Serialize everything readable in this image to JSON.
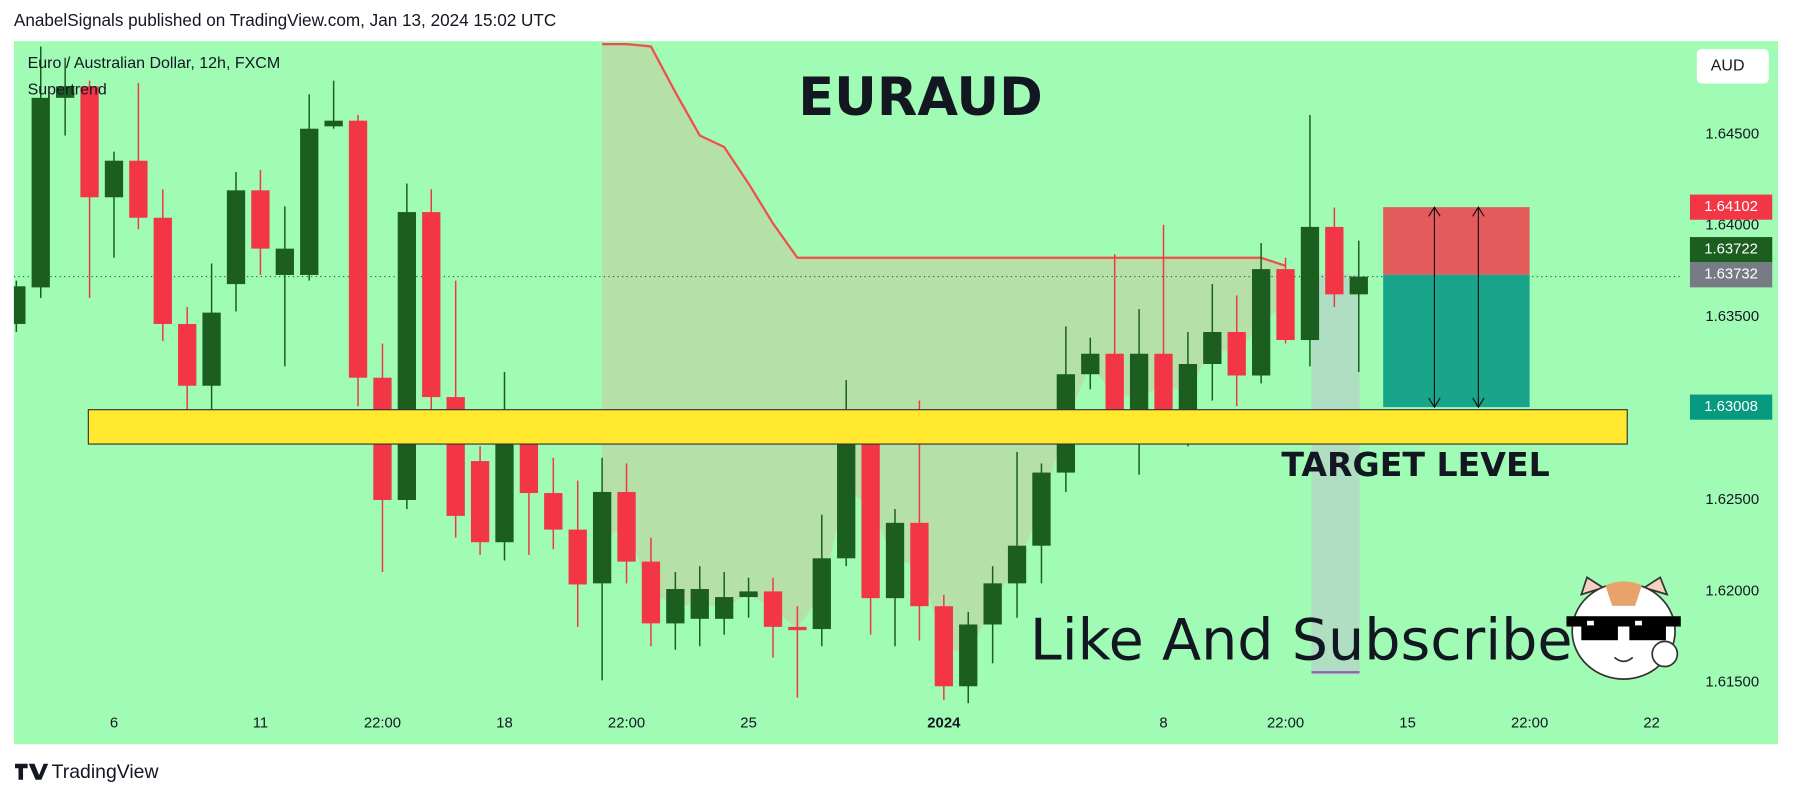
{
  "header": "AnabelSignals published on TradingView.com, Jan 13, 2024 15:02 UTC",
  "footer": "TradingView",
  "chart_data": {
    "type": "candlestick",
    "title": "EURAUD",
    "symbol": "Euro / Australian Dollar, 12h, FXCM",
    "indicator": "Supertrend",
    "currency": "AUD",
    "annotations": [
      "TARGET LEVEL",
      "Like And Subscribe"
    ],
    "up_color": "#1b5e20",
    "down_color": "#f23645",
    "open": [
      1.63463,
      1.63663,
      1.647,
      1.64763,
      1.64156,
      1.64356,
      1.64044,
      1.63463,
      1.63125,
      1.63681,
      1.64194,
      1.63731,
      1.63731,
      1.64544,
      1.64575,
      1.63169,
      1.625,
      1.64075,
      1.63063,
      1.62713,
      1.62269,
      1.62875,
      1.62538,
      1.62338,
      1.62044,
      1.62544,
      1.62163,
      1.61825,
      1.6185,
      1.6185,
      1.61969,
      1.62,
      1.61806,
      1.61794,
      1.62181,
      1.6295,
      1.61963,
      1.62375,
      1.61919,
      1.61481,
      1.61819,
      1.62044,
      1.6225,
      1.6265,
      1.63188,
      1.633,
      1.62831,
      1.633,
      1.62944,
      1.63244,
      1.63419,
      1.63181,
      1.63763,
      1.63375,
      1.63994,
      1.63625
    ],
    "high": [
      1.637,
      1.64981,
      1.64919,
      1.64794,
      1.64406,
      1.64781,
      1.642,
      1.63556,
      1.63794,
      1.64294,
      1.64306,
      1.64106,
      1.64719,
      1.64794,
      1.64606,
      1.63356,
      1.64231,
      1.642,
      1.637,
      1.62794,
      1.632,
      1.62981,
      1.62731,
      1.62606,
      1.62731,
      1.627,
      1.62294,
      1.62106,
      1.62138,
      1.62106,
      1.62075,
      1.62075,
      1.61919,
      1.62419,
      1.63156,
      1.6295,
      1.6245,
      1.63044,
      1.61981,
      1.61888,
      1.62138,
      1.62763,
      1.627,
      1.6345,
      1.63388,
      1.63844,
      1.63544,
      1.64006,
      1.63419,
      1.63681,
      1.63619,
      1.63906,
      1.63825,
      1.64606,
      1.641,
      1.63919
    ],
    "low": [
      1.63419,
      1.63606,
      1.64494,
      1.63606,
      1.63825,
      1.63981,
      1.63369,
      1.62919,
      1.62981,
      1.63531,
      1.63731,
      1.63231,
      1.637,
      1.64531,
      1.63013,
      1.62106,
      1.6245,
      1.62981,
      1.62294,
      1.622,
      1.62169,
      1.622,
      1.62231,
      1.61806,
      1.61513,
      1.62044,
      1.617,
      1.61681,
      1.617,
      1.61763,
      1.61856,
      1.61638,
      1.61419,
      1.617,
      1.62138,
      1.61763,
      1.617,
      1.61731,
      1.61406,
      1.61388,
      1.61606,
      1.61856,
      1.62044,
      1.62544,
      1.63106,
      1.62825,
      1.62638,
      1.62919,
      1.62794,
      1.63044,
      1.63013,
      1.63138,
      1.63356,
      1.63231,
      1.63556,
      1.632
    ],
    "close": [
      1.63669,
      1.647,
      1.64763,
      1.64156,
      1.64356,
      1.64044,
      1.63463,
      1.63125,
      1.63525,
      1.64194,
      1.63875,
      1.63875,
      1.64531,
      1.64575,
      1.63169,
      1.625,
      1.64075,
      1.63063,
      1.62413,
      1.62269,
      1.62875,
      1.62538,
      1.62338,
      1.62038,
      1.62544,
      1.62163,
      1.61825,
      1.62013,
      1.62013,
      1.61969,
      1.62,
      1.61806,
      1.61788,
      1.62181,
      1.6295,
      1.61963,
      1.62375,
      1.61919,
      1.61481,
      1.61819,
      1.62044,
      1.6225,
      1.6265,
      1.63188,
      1.633,
      1.62831,
      1.633,
      1.62944,
      1.63244,
      1.63419,
      1.63181,
      1.63763,
      1.63375,
      1.63994,
      1.63625,
      1.63722
    ],
    "supertrend": {
      "color": "#f0504a",
      "fill": "#b9dca6",
      "values": [
        null,
        null,
        null,
        null,
        null,
        null,
        null,
        null,
        null,
        null,
        null,
        null,
        null,
        null,
        null,
        null,
        null,
        null,
        null,
        null,
        null,
        null,
        null,
        null,
        1.64994,
        1.64994,
        1.64981,
        1.64731,
        1.64494,
        1.64431,
        1.64231,
        1.64013,
        1.63825,
        1.63825,
        1.63825,
        1.63825,
        1.63825,
        1.63825,
        1.63825,
        1.63825,
        1.63825,
        1.63825,
        1.63825,
        1.63825,
        1.63825,
        1.63825,
        1.63825,
        1.63825,
        1.63825,
        1.63825,
        1.63825,
        1.63825,
        1.63781,
        null,
        null,
        null
      ]
    },
    "zone": {
      "low": 1.62806,
      "high": 1.62994,
      "from": 2.95,
      "to": 66.0,
      "color": "#ffe82e"
    },
    "position": {
      "stop": 1.64102,
      "entry": 1.63732,
      "target": 1.63008,
      "from": 56.0,
      "to": 62.0,
      "stop_color": "#e35b5b",
      "target_color": "#18a58b"
    },
    "price_labels": [
      1.64102,
      1.63732,
      1.63722,
      1.63008
    ],
    "price_label_colors": [
      "#f23645",
      "#787b86",
      "#1b5e20",
      "#089981"
    ],
    "xlim": [
      -0.1,
      71.8
    ],
    "ylim": [
      1.6117,
      1.6501
    ],
    "xticks": [
      {
        "value": 4,
        "label": "6"
      },
      {
        "value": 10,
        "label": "11"
      },
      {
        "value": 15,
        "label": "22:00"
      },
      {
        "value": 20,
        "label": "18"
      },
      {
        "value": 25,
        "label": "22:00"
      },
      {
        "value": 30,
        "label": "25"
      },
      {
        "value": 38,
        "label": "2024"
      },
      {
        "value": 47,
        "label": "8"
      },
      {
        "value": 52,
        "label": "22:00"
      },
      {
        "value": 57,
        "label": "15"
      },
      {
        "value": 62,
        "label": "22:00"
      },
      {
        "value": 67,
        "label": "22"
      }
    ],
    "yticks": [
      {
        "value": 1.645,
        "label": "1.64500"
      },
      {
        "value": 1.64,
        "label": "1.64000"
      },
      {
        "value": 1.635,
        "label": "1.63500"
      },
      {
        "value": 1.625,
        "label": "1.62500"
      },
      {
        "value": 1.62,
        "label": "1.62000"
      },
      {
        "value": 1.615,
        "label": "1.61500"
      }
    ]
  }
}
